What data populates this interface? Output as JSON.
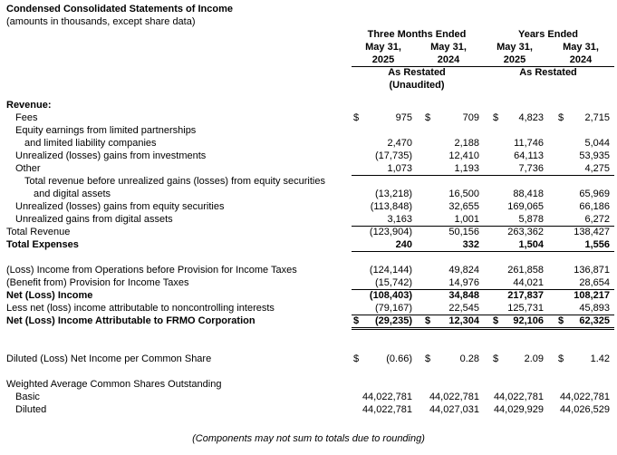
{
  "title": "Condensed Consolidated Statements of Income",
  "subtitle": "(amounts in thousands, except share data)",
  "currency_symbol": "$",
  "header": {
    "group1": "Three Months Ended",
    "group2": "Years Ended",
    "date_label": "May 31,",
    "years": [
      "2025",
      "2024",
      "2025",
      "2024"
    ],
    "restated1": "As Restated",
    "restated2": "As Restated",
    "unaudited": "(Unaudited)"
  },
  "rows": [
    {
      "label": "Revenue:",
      "indent": 0,
      "bold": true,
      "dollar": false,
      "values": null,
      "rule": "none"
    },
    {
      "label": "Fees",
      "indent": 1,
      "bold": false,
      "dollar": true,
      "values": [
        "975",
        "709",
        "4,823",
        "2,715"
      ],
      "rule": "none"
    },
    {
      "label": "Equity earnings from limited partnerships",
      "indent": 1,
      "bold": false,
      "dollar": false,
      "values": null,
      "rule": "none"
    },
    {
      "label": "and limited liability companies",
      "indent": 2,
      "bold": false,
      "dollar": false,
      "values": [
        "2,470",
        "2,188",
        "11,746",
        "5,044"
      ],
      "rule": "none"
    },
    {
      "label": "Unrealized (losses) gains from investments",
      "indent": 1,
      "bold": false,
      "dollar": false,
      "values": [
        "(17,735)",
        "12,410",
        "64,113",
        "53,935"
      ],
      "rule": "none"
    },
    {
      "label": "Other",
      "indent": 1,
      "bold": false,
      "dollar": false,
      "values": [
        "1,073",
        "1,193",
        "7,736",
        "4,275"
      ],
      "rule": "single"
    },
    {
      "label": "Total revenue before unrealized gains (losses) from equity securities",
      "indent": 2,
      "bold": false,
      "dollar": false,
      "values": null,
      "rule": "none"
    },
    {
      "label": "and digital assets",
      "indent": 3,
      "bold": false,
      "dollar": false,
      "values": [
        "(13,218)",
        "16,500",
        "88,418",
        "65,969"
      ],
      "rule": "none"
    },
    {
      "label": "Unrealized (losses) gains from equity securities",
      "indent": 1,
      "bold": false,
      "dollar": false,
      "values": [
        "(113,848)",
        "32,655",
        "169,065",
        "66,186"
      ],
      "rule": "none"
    },
    {
      "label": "Unrealized gains from digital assets",
      "indent": 1,
      "bold": false,
      "dollar": false,
      "values": [
        "3,163",
        "1,001",
        "5,878",
        "6,272"
      ],
      "rule": "single"
    },
    {
      "label": "Total Revenue",
      "indent": 0,
      "bold": false,
      "dollar": false,
      "values": [
        "(123,904)",
        "50,156",
        "263,362",
        "138,427"
      ],
      "rule": "none"
    },
    {
      "label": "Total Expenses",
      "indent": 0,
      "bold": true,
      "dollar": false,
      "values": [
        "240",
        "332",
        "1,504",
        "1,556"
      ],
      "rule": "single"
    },
    {
      "spacer": true
    },
    {
      "label": "(Loss) Income from Operations before Provision for Income Taxes",
      "indent": 0,
      "bold": false,
      "dollar": false,
      "values": [
        "(124,144)",
        "49,824",
        "261,858",
        "136,871"
      ],
      "rule": "none"
    },
    {
      "label": "(Benefit from) Provision for Income Taxes",
      "indent": 0,
      "bold": false,
      "dollar": false,
      "values": [
        "(15,742)",
        "14,976",
        "44,021",
        "28,654"
      ],
      "rule": "single"
    },
    {
      "label": "Net (Loss) Income",
      "indent": 0,
      "bold": true,
      "dollar": false,
      "values": [
        "(108,403)",
        "34,848",
        "217,837",
        "108,217"
      ],
      "rule": "none"
    },
    {
      "label": "Less net (loss) income attributable to noncontrolling interests",
      "indent": 0,
      "bold": false,
      "dollar": false,
      "values": [
        "(79,167)",
        "22,545",
        "125,731",
        "45,893"
      ],
      "rule": "single"
    },
    {
      "label": "Net (Loss) Income Attributable to FRMO Corporation",
      "indent": 0,
      "bold": true,
      "dollar": true,
      "values": [
        "(29,235)",
        "12,304",
        "92,106",
        "62,325"
      ],
      "rule": "double"
    },
    {
      "spacer": true
    },
    {
      "spacer": true
    },
    {
      "label": "Diluted (Loss) Net Income per Common Share",
      "indent": 0,
      "bold": false,
      "dollar": true,
      "values": [
        "(0.66)",
        "0.28",
        "2.09",
        "1.42"
      ],
      "rule": "none"
    },
    {
      "spacer": true
    },
    {
      "label": "Weighted Average Common Shares Outstanding",
      "indent": 0,
      "bold": false,
      "dollar": false,
      "values": null,
      "rule": "none"
    },
    {
      "label": "Basic",
      "indent": 1,
      "bold": false,
      "dollar": false,
      "values": [
        "44,022,781",
        "44,022,781",
        "44,022,781",
        "44,022,781"
      ],
      "rule": "none"
    },
    {
      "label": "Diluted",
      "indent": 1,
      "bold": false,
      "dollar": false,
      "values": [
        "44,022,781",
        "44,027,031",
        "44,029,929",
        "44,026,529"
      ],
      "rule": "none"
    }
  ],
  "footer": "(Components may not sum to totals due to rounding)",
  "colors": {
    "text": "#000000",
    "background": "#ffffff",
    "rule": "#000000"
  }
}
